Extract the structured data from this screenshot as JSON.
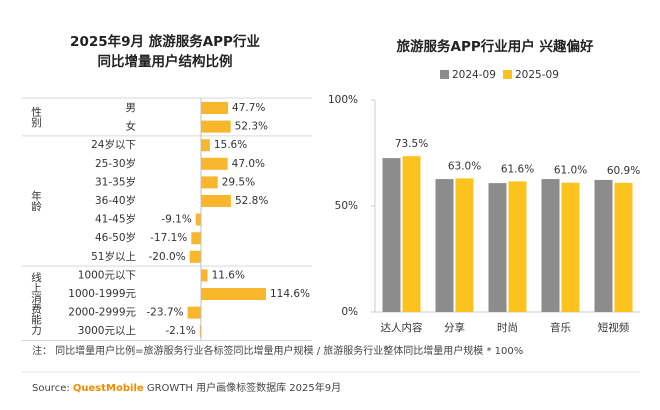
{
  "chart_data": [
    {
      "type": "hbar-groups",
      "title": [
        "2025年9月 旅游服务APP行业",
        "同比增量用户结构比例"
      ],
      "color": "#f8b62d",
      "groups": [
        {
          "name": "性别",
          "categories": [
            "男",
            "女"
          ],
          "values": [
            47.7,
            52.3
          ],
          "value_labels": [
            "47.7%",
            "52.3%"
          ]
        },
        {
          "name": "年龄",
          "categories": [
            "24岁以下",
            "25-30岁",
            "31-35岁",
            "36-40岁",
            "41-45岁",
            "46-50岁",
            "51岁以上"
          ],
          "values": [
            15.6,
            47.0,
            29.5,
            52.8,
            -9.1,
            -17.1,
            -20.0
          ],
          "value_labels": [
            "15.6%",
            "47.0%",
            "29.5%",
            "52.8%",
            "-9.1%",
            "-17.1%",
            "-20.0%"
          ]
        },
        {
          "name": "线上消费能力",
          "categories": [
            "1000元以下",
            "1000-1999元",
            "2000-2999元",
            "3000元以上"
          ],
          "values": [
            11.6,
            114.6,
            -23.7,
            -2.1
          ],
          "value_labels": [
            "11.6%",
            "114.6%",
            "-23.7%",
            "-2.1%"
          ]
        }
      ]
    },
    {
      "type": "bar",
      "title": "旅游服务APP行业用户 兴趣偏好",
      "categories": [
        "达人内容",
        "分享",
        "时尚",
        "音乐",
        "短视频"
      ],
      "series": [
        {
          "name": "2024-09",
          "color": "#8c8c8c",
          "values": [
            72.6,
            62.7,
            60.8,
            62.7,
            62.3
          ]
        },
        {
          "name": "2025-09",
          "color": "#fcc31e",
          "values": [
            73.5,
            63.0,
            61.6,
            61.0,
            60.9
          ],
          "value_labels": [
            "73.5%",
            "63.0%",
            "61.6%",
            "61.0%",
            "60.9%"
          ]
        }
      ],
      "ylim": [
        0,
        100
      ],
      "yticks": [
        {
          "value": 0,
          "label": "0%"
        },
        {
          "value": 50,
          "label": "50%"
        },
        {
          "value": 100,
          "label": "100%"
        }
      ]
    }
  ],
  "note": "注：  同比增量用户比例=旅游服务行业各标签同比增量用户规模 / 旅游服务行业整体同比增量用户规模 * 100%",
  "source": {
    "prefix": "Source:",
    "brand": "QuestMobile",
    "rest": "GROWTH 用户画像标签数据库 2025年9月"
  }
}
